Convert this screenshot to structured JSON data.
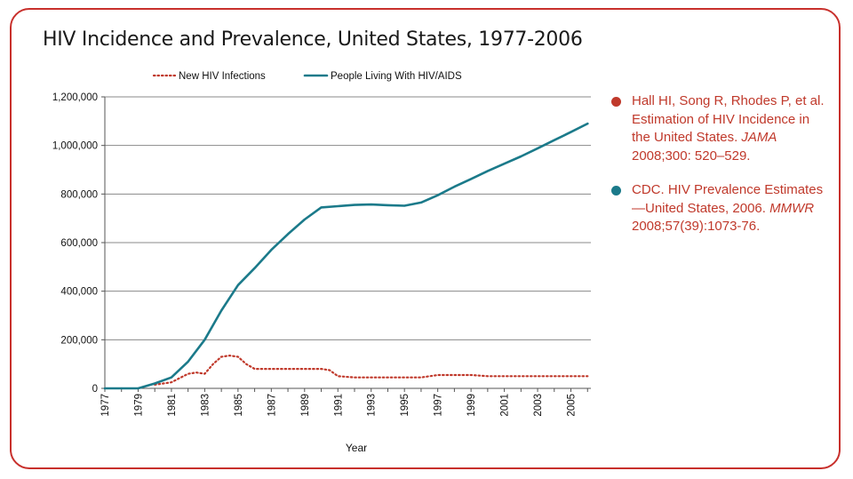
{
  "page": {
    "title": "HIV Incidence and Prevalence, United States, 1977-2006"
  },
  "colors": {
    "frame": "#c8302c",
    "incidence": "#c0392b",
    "prevalence": "#1b7a8a",
    "reference_text": "#c0392b"
  },
  "references": [
    {
      "text": "Hall HI, Song R, Rhodes P, et al. Estimation of HIV Incidence in the United States. ",
      "journal": "JAMA",
      "suffix": " 2008;300: 520–529.",
      "bullet_color": "#c0392b"
    },
    {
      "text": "CDC. HIV Prevalence Estimates—United States, 2006. ",
      "journal": "MMWR",
      "suffix": " 2008;57(39):1073-76.",
      "bullet_color": "#1b7a8a"
    }
  ],
  "chart_data": {
    "type": "line",
    "title": "",
    "xlabel": "Year",
    "ylabel": "",
    "xlim": [
      1977,
      2006
    ],
    "ylim": [
      0,
      1200000
    ],
    "y_ticks": [
      "0",
      "200,000",
      "400,000",
      "600,000",
      "800,000",
      "1,000,000",
      "1,200,000"
    ],
    "x_ticks": [
      "1977",
      "1979",
      "1981",
      "1983",
      "1985",
      "1987",
      "1989",
      "1991",
      "1993",
      "1995",
      "1997",
      "1999",
      "2001",
      "2003",
      "2005"
    ],
    "grid": true,
    "legend": "top",
    "series": [
      {
        "name": "New HIV Infections",
        "style": "dotted",
        "color": "#c0392b",
        "x": [
          1980,
          1981,
          1982,
          1982.5,
          1983,
          1983.5,
          1984,
          1984.5,
          1985,
          1985.5,
          1986,
          1987,
          1988,
          1989,
          1990,
          1990.5,
          1991,
          1992,
          1993,
          1994,
          1995,
          1996,
          1997,
          1998,
          1999,
          2000,
          2001,
          2002,
          2003,
          2004,
          2005,
          2006
        ],
        "y": [
          15000,
          25000,
          60000,
          65000,
          60000,
          100000,
          130000,
          135000,
          130000,
          100000,
          80000,
          80000,
          80000,
          80000,
          80000,
          75000,
          50000,
          45000,
          45000,
          45000,
          45000,
          45000,
          55000,
          55000,
          55000,
          50000,
          50000,
          50000,
          50000,
          50000,
          50000,
          50000
        ]
      },
      {
        "name": "People Living With HIV/AIDS",
        "style": "solid",
        "color": "#1b7a8a",
        "x": [
          1977,
          1978,
          1979,
          1980,
          1981,
          1982,
          1983,
          1984,
          1985,
          1986,
          1987,
          1988,
          1989,
          1990,
          1991,
          1992,
          1993,
          1994,
          1995,
          1996,
          1997,
          1998,
          1999,
          2000,
          2001,
          2002,
          2003,
          2004,
          2005,
          2006
        ],
        "y": [
          0,
          0,
          0,
          20000,
          45000,
          110000,
          200000,
          320000,
          425000,
          495000,
          570000,
          635000,
          695000,
          745000,
          750000,
          755000,
          757000,
          754000,
          752000,
          765000,
          795000,
          830000,
          862000,
          895000,
          925000,
          955000,
          988000,
          1022000,
          1055000,
          1090000
        ]
      }
    ]
  }
}
